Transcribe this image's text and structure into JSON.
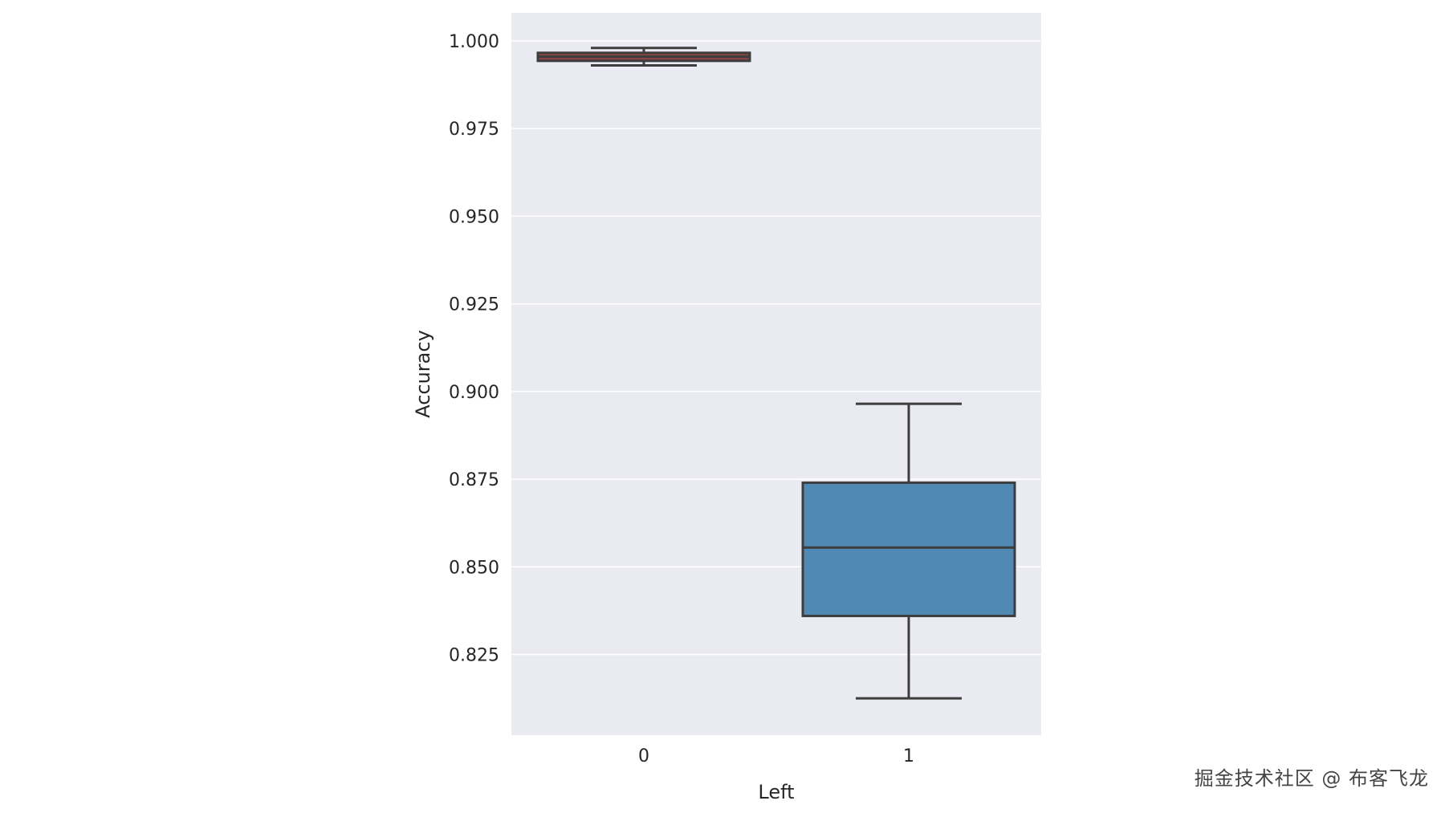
{
  "chart_data": {
    "type": "box",
    "xlabel": "Left",
    "ylabel": "Accuracy",
    "ylim": [
      0.802,
      1.008
    ],
    "yticks": [
      0.825,
      0.85,
      0.875,
      0.9,
      0.925,
      0.95,
      0.975,
      1.0
    ],
    "ytick_labels": [
      "0.825",
      "0.850",
      "0.875",
      "0.900",
      "0.925",
      "0.950",
      "0.975",
      "1.000"
    ],
    "grid": true,
    "background": "#eaeaf2",
    "grid_color": "#ffffff",
    "line_color": "#3d3d3d",
    "categories": [
      "0",
      "1"
    ],
    "boxes": [
      {
        "category": "0",
        "whisker_low": 0.993,
        "q1": 0.9943,
        "median": 0.9955,
        "q3": 0.9966,
        "whisker_high": 0.998,
        "color": "#8c4545"
      },
      {
        "category": "1",
        "whisker_low": 0.8125,
        "q1": 0.836,
        "median": 0.8555,
        "q3": 0.874,
        "whisker_high": 0.8965,
        "color": "#5189b5"
      }
    ]
  },
  "watermark": "掘金技术社区 @ 布客飞龙"
}
